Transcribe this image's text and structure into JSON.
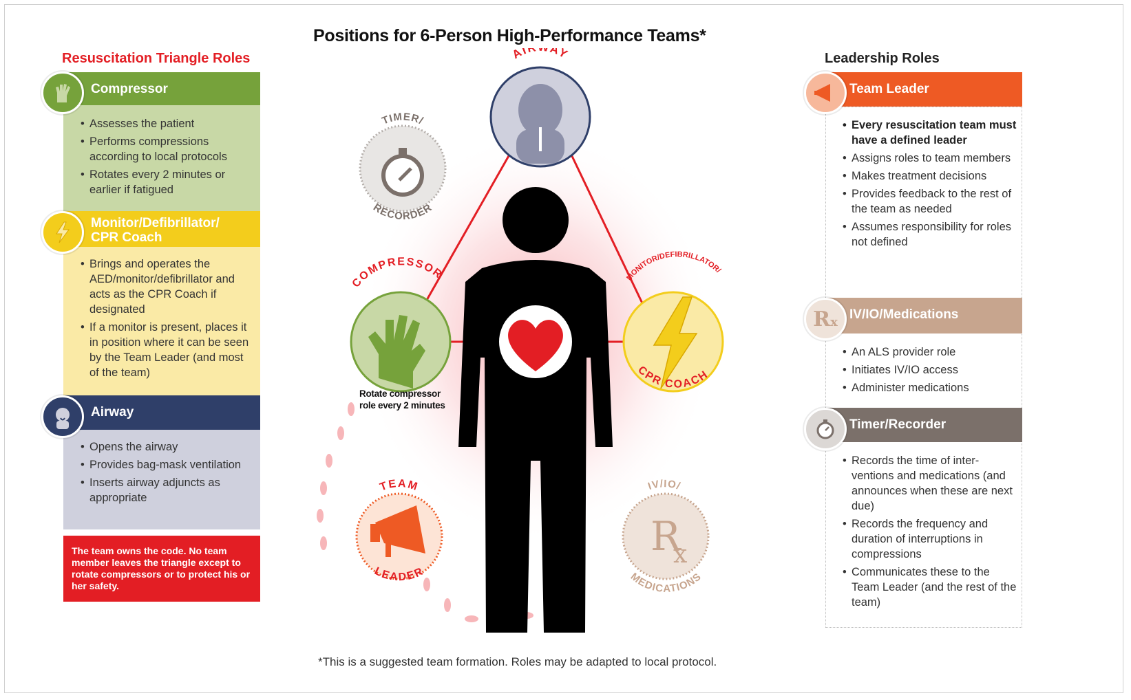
{
  "title": "Positions for 6-Person High-Performance Teams*",
  "footnote": "*This is a suggested team formation. Roles may be adapted to local protocol.",
  "left_column": {
    "heading": "Resuscitation Triangle Roles",
    "compressor": {
      "title": "Compressor",
      "items": [
        "Assesses the patient",
        "Performs compressions according to local protocols",
        "Rotates every 2 minutes or earlier if fatigued"
      ]
    },
    "monitor": {
      "title": "Monitor/Defibrillator/ CPR Coach",
      "items": [
        "Brings and operates the AED/monitor/defibrillator and acts as the CPR Coach if designated",
        "If a monitor is present, places it in position where it can be seen by the Team Leader (and most of the team)"
      ]
    },
    "airway": {
      "title": "Airway",
      "items": [
        "Opens the airway",
        "Provides bag-mask ventilation",
        "Inserts airway adjuncts as appropriate"
      ]
    },
    "alert": "The team owns the code. No team member leaves the triangle except to rotate compressors or to protect his or her safety."
  },
  "right_column": {
    "heading": "Leadership Roles",
    "team_leader": {
      "title": "Team Leader",
      "items": [
        "Every resuscitation team must have a defined leader",
        "Assigns roles to team members",
        "Makes treatment decisions",
        "Provides feedback to the rest of the team as needed",
        "Assumes responsibility for roles not defined"
      ]
    },
    "iv": {
      "title": "IV/IO/Medications",
      "items": [
        "An ALS provider role",
        "Initiates IV/IO access",
        "Administer medications"
      ]
    },
    "timer": {
      "title": "Timer/Recorder",
      "items": [
        "Records the time of inter-ventions and medications (and announces when these are next due)",
        "Records the frequency and duration of interruptions in compressions",
        "Communicates these to the Team Leader (and the rest of the team)"
      ]
    }
  },
  "diagram": {
    "airway_label": "AIRWAY",
    "timer_label_top": "TIMER/",
    "timer_label_bottom": "RECORDER",
    "compressor_label": "COMPRESSOR",
    "monitor_label_top": "MONITOR/DEFIBRILLATOR/",
    "monitor_label_bottom": "CPR COACH",
    "team_label_top": "TEAM",
    "team_label_bottom": "LEADER",
    "iv_label_top": "IV/IO/",
    "iv_label_bottom": "MEDICATIONS",
    "rx_symbol": "R",
    "rx_sub": "x",
    "rotate_note": "Rotate compressor role every 2 minutes"
  },
  "colors": {
    "red": "#e31e24",
    "compressor": "#76a23b",
    "compressor_light": "#c8d8a6",
    "monitor": "#f3cd1c",
    "monitor_light": "#faeaa6",
    "airway": "#2f3f69",
    "airway_light": "#cfd0dd",
    "leader": "#ee5a24",
    "iv": "#c7a58e",
    "timer": "#7b706a"
  },
  "icons": [
    "hand-icon",
    "lightning-icon",
    "airway-person-icon",
    "megaphone-icon",
    "rx-icon",
    "stopwatch-icon",
    "heart-icon",
    "body-silhouette"
  ]
}
